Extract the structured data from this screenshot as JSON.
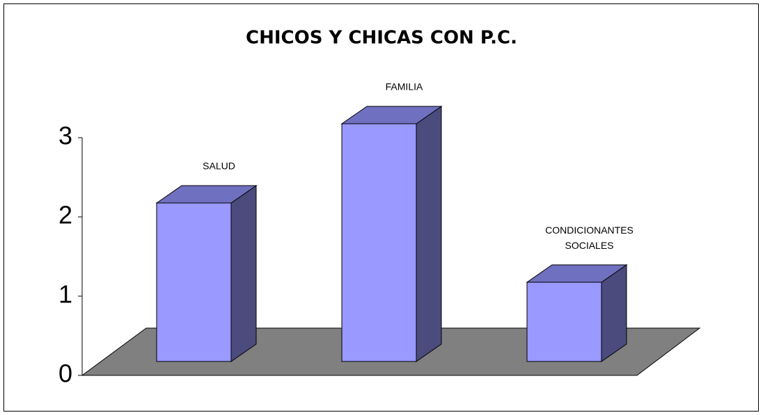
{
  "chart_data": {
    "type": "bar3d",
    "title": "CHICOS Y CHICAS CON P.C.",
    "categories": [
      "SALUD",
      "FAMILIA",
      "CONDICIONANTES SOCIALES"
    ],
    "values": [
      2,
      3,
      1
    ],
    "color": "#9999ff",
    "ylim": [
      0,
      3
    ],
    "yticks": [
      0,
      1,
      2,
      3
    ]
  }
}
